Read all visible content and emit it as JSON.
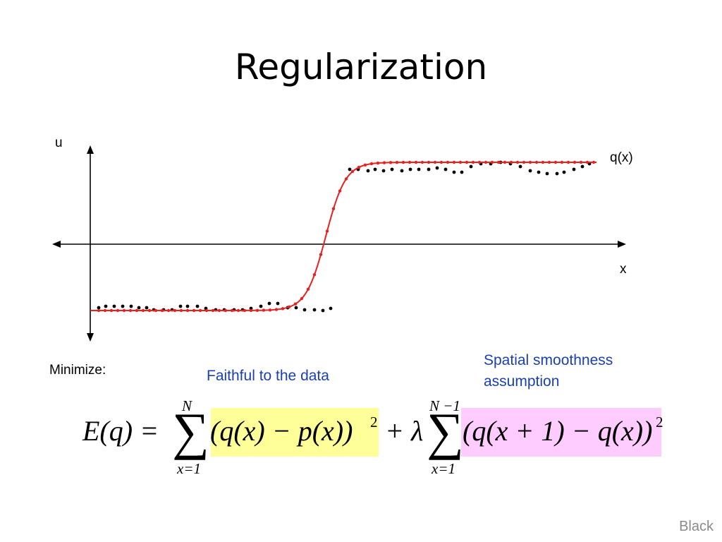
{
  "slide": {
    "title": "Regularization",
    "footer": "Black"
  },
  "plot": {
    "axis_u_label": "u",
    "axis_x_label": "x",
    "curve_label": "q(x)",
    "colors": {
      "curve": "#e82020",
      "data": "#000000",
      "axes": "#000000"
    },
    "data_points_px_note": "",
    "data_low_level": -1,
    "data_high_level": 1
  },
  "annotations": {
    "minimize": "Minimize:",
    "faithful": "Faithful to the data",
    "smoothness": "Spatial smoothness assumption"
  },
  "equation": {
    "lhs": "E(q) =",
    "sum1_top": "N",
    "sum1_bottom": "x=1",
    "term1": "(q(x) − p(x))",
    "term1_exp": "2",
    "plus_lambda": "+ λ",
    "sum2_top": "N −1",
    "sum2_bottom": "x=1",
    "term2": "(q(x + 1) − q(x))",
    "term2_exp": "2",
    "highlight_colors": {
      "data_term": "#ffff99",
      "smooth_term": "#ffccff"
    }
  }
}
